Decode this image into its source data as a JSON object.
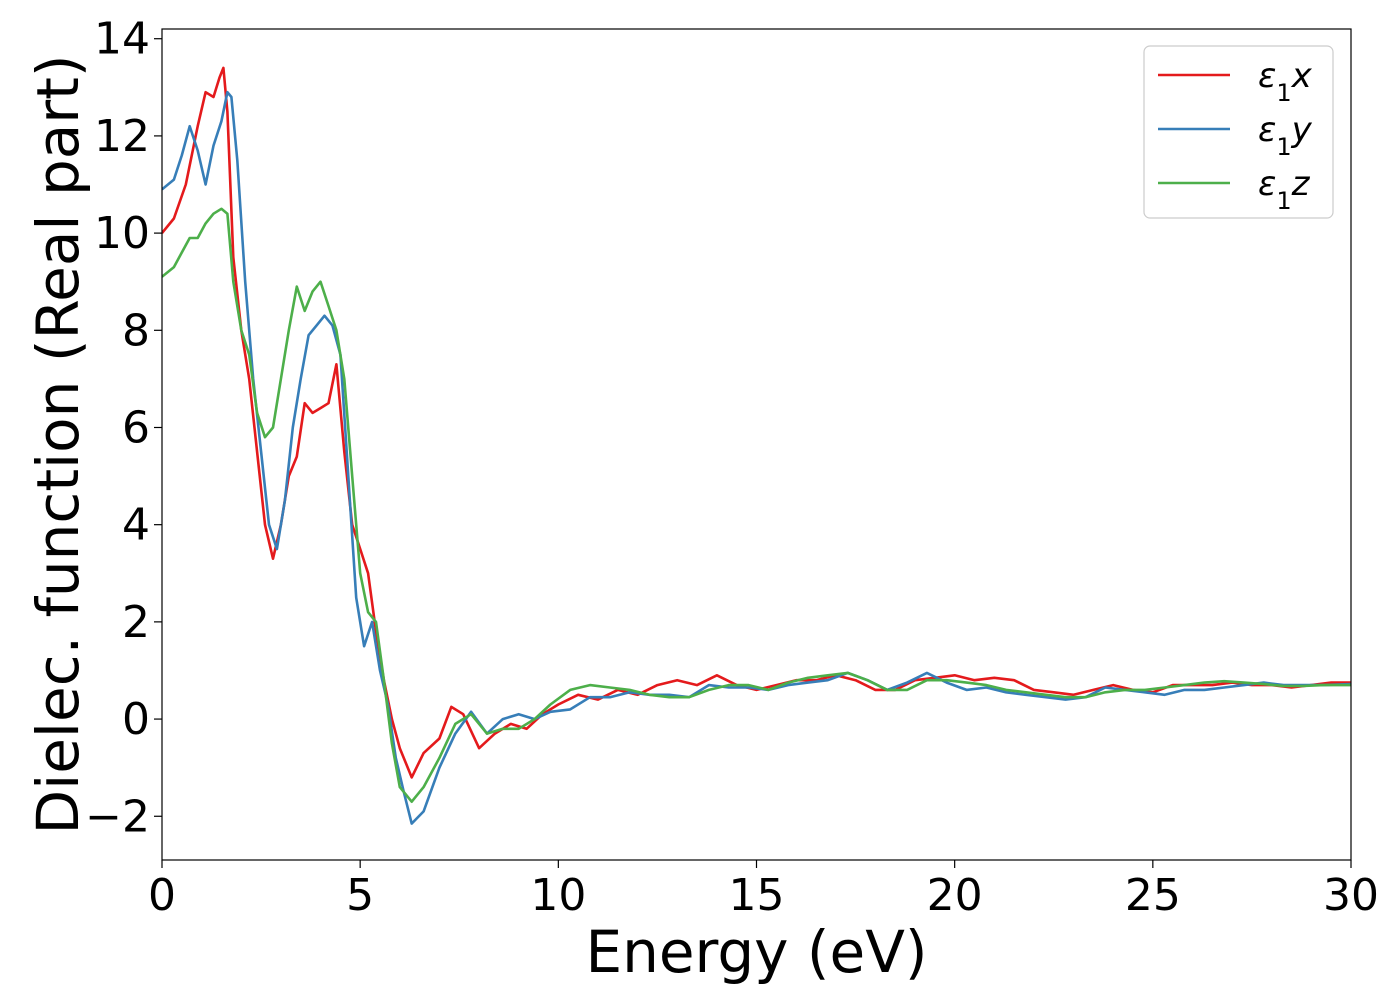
{
  "chart_data": {
    "type": "line",
    "xlabel": "Energy (eV)",
    "ylabel": "Dielec. function (Real part)",
    "xlim": [
      0,
      30
    ],
    "ylim": [
      -2.9,
      14.2
    ],
    "xticks": [
      0,
      5,
      10,
      15,
      20,
      25,
      30
    ],
    "yticks": [
      -2,
      0,
      2,
      4,
      6,
      8,
      10,
      12,
      14
    ],
    "xtick_labels": [
      "0",
      "5",
      "10",
      "15",
      "20",
      "25",
      "30"
    ],
    "ytick_labels": [
      "−2",
      "0",
      "2",
      "4",
      "6",
      "8",
      "10",
      "12",
      "14"
    ],
    "grid": false,
    "legend_position": "top-right",
    "series": [
      {
        "name": "ε₁x",
        "name_base": "ε",
        "name_sub": "1",
        "name_suffix": "x",
        "color": "#e41a1c",
        "x": [
          0,
          0.3,
          0.6,
          0.9,
          1.1,
          1.3,
          1.45,
          1.55,
          1.65,
          1.8,
          2.0,
          2.2,
          2.4,
          2.6,
          2.8,
          3.0,
          3.2,
          3.4,
          3.6,
          3.8,
          4.0,
          4.2,
          4.4,
          4.6,
          4.8,
          5.0,
          5.2,
          5.4,
          5.6,
          5.8,
          6.0,
          6.3,
          6.6,
          7.0,
          7.3,
          7.6,
          8.0,
          8.4,
          8.8,
          9.2,
          9.6,
          10,
          10.5,
          11,
          11.5,
          12,
          12.5,
          13,
          13.5,
          14,
          14.5,
          15,
          15.5,
          16,
          16.5,
          17,
          17.5,
          18,
          18.5,
          19,
          19.5,
          20,
          20.5,
          21,
          21.5,
          22,
          22.5,
          23,
          23.5,
          24,
          24.5,
          25,
          25.5,
          26,
          26.5,
          27,
          27.5,
          28,
          28.5,
          29,
          29.5,
          30
        ],
        "values": [
          10.0,
          10.3,
          11.0,
          12.2,
          12.9,
          12.8,
          13.2,
          13.4,
          12.5,
          9.5,
          8.0,
          7.0,
          5.5,
          4.0,
          3.3,
          4.0,
          5.0,
          5.4,
          6.5,
          6.3,
          6.4,
          6.5,
          7.3,
          5.5,
          4.0,
          3.5,
          3.0,
          1.8,
          0.8,
          0.0,
          -0.6,
          -1.2,
          -0.7,
          -0.4,
          0.25,
          0.1,
          -0.6,
          -0.3,
          -0.1,
          -0.2,
          0.1,
          0.3,
          0.5,
          0.4,
          0.6,
          0.5,
          0.7,
          0.8,
          0.7,
          0.9,
          0.7,
          0.6,
          0.7,
          0.8,
          0.8,
          0.9,
          0.8,
          0.6,
          0.6,
          0.8,
          0.85,
          0.9,
          0.8,
          0.85,
          0.8,
          0.6,
          0.55,
          0.5,
          0.6,
          0.7,
          0.6,
          0.55,
          0.7,
          0.7,
          0.7,
          0.75,
          0.7,
          0.7,
          0.65,
          0.7,
          0.75,
          0.75
        ]
      },
      {
        "name": "ε₁y",
        "name_base": "ε",
        "name_sub": "1",
        "name_suffix": "y",
        "color": "#377eb8",
        "x": [
          0,
          0.3,
          0.5,
          0.7,
          0.9,
          1.1,
          1.3,
          1.5,
          1.65,
          1.75,
          1.9,
          2.1,
          2.3,
          2.5,
          2.7,
          2.9,
          3.1,
          3.3,
          3.5,
          3.7,
          3.9,
          4.1,
          4.3,
          4.5,
          4.7,
          4.9,
          5.1,
          5.3,
          5.5,
          5.7,
          5.9,
          6.1,
          6.3,
          6.6,
          7.0,
          7.4,
          7.8,
          8.2,
          8.6,
          9.0,
          9.4,
          9.8,
          10.3,
          10.8,
          11.3,
          11.8,
          12.3,
          12.8,
          13.3,
          13.8,
          14.3,
          14.8,
          15.3,
          15.8,
          16.3,
          16.8,
          17.3,
          17.8,
          18.3,
          18.8,
          19.3,
          19.8,
          20.3,
          20.8,
          21.3,
          21.8,
          22.3,
          22.8,
          23.3,
          23.8,
          24.3,
          24.8,
          25.3,
          25.8,
          26.3,
          26.8,
          27.3,
          27.8,
          28.3,
          28.8,
          29.3,
          30
        ],
        "values": [
          10.9,
          11.1,
          11.6,
          12.2,
          11.7,
          11.0,
          11.8,
          12.3,
          12.9,
          12.8,
          11.5,
          9.0,
          7.0,
          5.5,
          4.0,
          3.5,
          4.5,
          6.0,
          7.0,
          7.9,
          8.1,
          8.3,
          8.1,
          7.5,
          5.0,
          2.5,
          1.5,
          2.0,
          1.0,
          0.3,
          -0.8,
          -1.5,
          -2.15,
          -1.9,
          -1.0,
          -0.3,
          0.15,
          -0.3,
          0.0,
          0.1,
          0.0,
          0.15,
          0.2,
          0.45,
          0.45,
          0.55,
          0.5,
          0.5,
          0.45,
          0.7,
          0.65,
          0.65,
          0.6,
          0.7,
          0.75,
          0.8,
          0.95,
          0.8,
          0.6,
          0.75,
          0.95,
          0.75,
          0.6,
          0.65,
          0.55,
          0.5,
          0.45,
          0.4,
          0.45,
          0.65,
          0.6,
          0.55,
          0.5,
          0.6,
          0.6,
          0.65,
          0.7,
          0.75,
          0.7,
          0.7,
          0.7,
          0.72
        ]
      },
      {
        "name": "ε₁z",
        "name_base": "ε",
        "name_sub": "1",
        "name_suffix": "z",
        "color": "#4daf4a",
        "x": [
          0,
          0.3,
          0.5,
          0.7,
          0.9,
          1.1,
          1.3,
          1.5,
          1.65,
          1.8,
          2.0,
          2.2,
          2.4,
          2.6,
          2.8,
          3.0,
          3.2,
          3.4,
          3.6,
          3.8,
          4.0,
          4.2,
          4.4,
          4.6,
          4.8,
          5.0,
          5.2,
          5.4,
          5.6,
          5.8,
          6.0,
          6.3,
          6.6,
          7.0,
          7.4,
          7.8,
          8.2,
          8.6,
          9.0,
          9.4,
          9.8,
          10.3,
          10.8,
          11.3,
          11.8,
          12.3,
          12.8,
          13.3,
          13.8,
          14.3,
          14.8,
          15.3,
          15.8,
          16.3,
          16.8,
          17.3,
          17.8,
          18.3,
          18.8,
          19.3,
          19.8,
          20.3,
          20.8,
          21.3,
          21.8,
          22.3,
          22.8,
          23.3,
          23.8,
          24.3,
          24.8,
          25.3,
          25.8,
          26.3,
          26.8,
          27.3,
          27.8,
          28.3,
          28.8,
          29.3,
          30
        ],
        "values": [
          9.1,
          9.3,
          9.6,
          9.9,
          9.9,
          10.2,
          10.4,
          10.5,
          10.4,
          9.0,
          8.0,
          7.5,
          6.3,
          5.8,
          6.0,
          7.0,
          8.0,
          8.9,
          8.4,
          8.8,
          9.0,
          8.5,
          8.0,
          7.0,
          5.0,
          3.0,
          2.2,
          2.0,
          0.8,
          -0.5,
          -1.4,
          -1.7,
          -1.4,
          -0.8,
          -0.1,
          0.1,
          -0.3,
          -0.2,
          -0.2,
          0.0,
          0.3,
          0.6,
          0.7,
          0.65,
          0.6,
          0.5,
          0.45,
          0.45,
          0.6,
          0.7,
          0.7,
          0.6,
          0.75,
          0.85,
          0.9,
          0.95,
          0.8,
          0.6,
          0.6,
          0.8,
          0.8,
          0.75,
          0.7,
          0.6,
          0.55,
          0.5,
          0.45,
          0.45,
          0.55,
          0.6,
          0.6,
          0.65,
          0.7,
          0.75,
          0.78,
          0.75,
          0.72,
          0.68,
          0.68,
          0.7,
          0.7
        ]
      }
    ]
  }
}
